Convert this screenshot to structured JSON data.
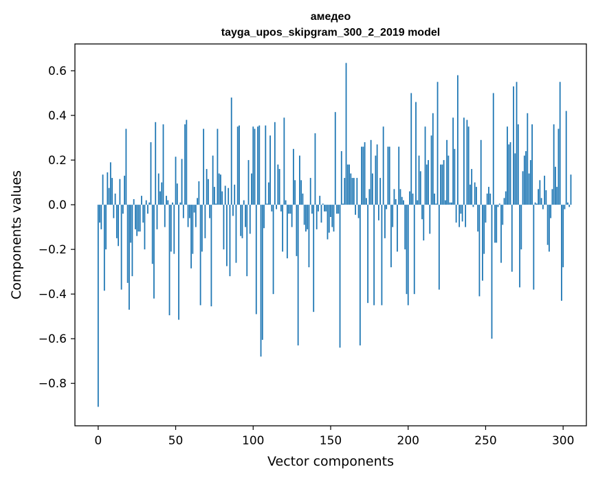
{
  "chart_data": {
    "type": "bar",
    "title": "амедео",
    "subtitle": "tayga_upos_skipgram_300_2_2019 model",
    "xlabel": "Vector components",
    "ylabel": "Components values",
    "xlim": [
      -15,
      315
    ],
    "ylim": [
      -0.99,
      0.72
    ],
    "xticks": [
      0,
      50,
      100,
      150,
      200,
      250,
      300
    ],
    "yticks": [
      -0.8,
      -0.6,
      -0.4,
      -0.2,
      0.0,
      0.2,
      0.4,
      0.6
    ],
    "ytick_labels": [
      "−0.8",
      "−0.6",
      "−0.4",
      "−0.2",
      "0.0",
      "0.2",
      "0.4",
      "0.6"
    ],
    "xtick_labels": [
      "0",
      "50",
      "100",
      "150",
      "200",
      "250",
      "300"
    ],
    "bar_color": "#1f77b4",
    "values": [
      -0.905,
      -0.08,
      -0.11,
      0.135,
      -0.385,
      -0.2,
      0.145,
      0.075,
      0.19,
      0.12,
      -0.06,
      0.05,
      -0.15,
      -0.185,
      0.115,
      -0.38,
      -0.04,
      0.13,
      0.34,
      -0.35,
      -0.47,
      -0.17,
      -0.32,
      0.025,
      -0.11,
      -0.14,
      -0.12,
      -0.12,
      0.04,
      -0.08,
      -0.2,
      0.02,
      -0.04,
      0.01,
      0.28,
      -0.265,
      -0.42,
      0.37,
      -0.11,
      0.14,
      0.06,
      0.1,
      0.36,
      -0.1,
      0.04,
      0.02,
      -0.495,
      -0.21,
      0.01,
      -0.22,
      0.215,
      0.095,
      -0.515,
      0.01,
      0.205,
      -0.06,
      0.36,
      0.38,
      -0.1,
      -0.06,
      -0.285,
      -0.22,
      -0.035,
      -0.1,
      0.03,
      0.105,
      -0.45,
      -0.21,
      0.34,
      -0.15,
      0.16,
      0.115,
      -0.06,
      -0.455,
      0.22,
      0.08,
      0.005,
      0.34,
      0.14,
      0.135,
      0.06,
      -0.2,
      0.085,
      -0.275,
      0.075,
      -0.32,
      0.48,
      -0.05,
      0.09,
      -0.26,
      0.35,
      0.355,
      -0.14,
      -0.15,
      0.02,
      -0.1,
      -0.32,
      0.2,
      -0.13,
      0.14,
      0.35,
      0.34,
      -0.49,
      0.35,
      0.355,
      -0.68,
      -0.605,
      -0.105,
      0.355,
      0.005,
      0.1,
      0.31,
      -0.03,
      -0.4,
      0.37,
      -0.02,
      0.18,
      0.16,
      -0.03,
      -0.21,
      0.39,
      0.02,
      -0.24,
      -0.04,
      -0.04,
      -0.1,
      0.25,
      0.11,
      -0.23,
      -0.63,
      0.22,
      0.11,
      0.05,
      -0.09,
      -0.12,
      -0.11,
      -0.28,
      0.12,
      -0.04,
      -0.48,
      0.32,
      -0.11,
      -0.03,
      0.04,
      -0.08,
      0.005,
      -0.03,
      -0.03,
      -0.155,
      -0.125,
      -0.055,
      -0.1,
      -0.12,
      0.415,
      -0.04,
      -0.04,
      -0.64,
      0.24,
      0.005,
      0.12,
      0.635,
      0.18,
      0.18,
      0.14,
      0.12,
      0.12,
      -0.045,
      0.12,
      -0.06,
      -0.63,
      0.26,
      0.26,
      0.28,
      0.03,
      -0.44,
      0.07,
      0.29,
      0.14,
      -0.45,
      0.22,
      0.27,
      -0.07,
      0.12,
      -0.45,
      0.35,
      -0.15,
      -0.02,
      0.26,
      0.26,
      -0.28,
      -0.1,
      0.07,
      0.025,
      -0.21,
      0.26,
      0.07,
      0.035,
      0.02,
      -0.2,
      -0.4,
      -0.45,
      0.06,
      0.5,
      0.05,
      -0.4,
      0.46,
      0.02,
      0.22,
      0.15,
      -0.065,
      -0.16,
      0.35,
      0.18,
      0.2,
      -0.13,
      0.31,
      0.41,
      0.05,
      0.005,
      0.55,
      -0.38,
      0.18,
      0.18,
      0.2,
      0.02,
      0.29,
      0.22,
      0.01,
      0.01,
      0.39,
      0.25,
      -0.08,
      0.58,
      -0.1,
      -0.04,
      -0.075,
      0.39,
      -0.1,
      0.38,
      0.35,
      0.09,
      0.16,
      -0.01,
      0.1,
      0.08,
      -0.12,
      -0.41,
      0.29,
      -0.34,
      -0.22,
      -0.08,
      0.05,
      0.08,
      0.05,
      -0.6,
      0.5,
      -0.17,
      -0.17,
      -0.01,
      0.005,
      -0.26,
      -0.09,
      0.03,
      0.06,
      0.35,
      0.27,
      0.28,
      -0.3,
      0.53,
      0.23,
      0.55,
      0.36,
      -0.37,
      -0.2,
      0.15,
      0.22,
      0.24,
      0.41,
      0.14,
      0.2,
      0.36,
      -0.38,
      0.01,
      0.005,
      0.07,
      0.11,
      0.03,
      -0.02,
      0.13,
      0.065,
      -0.18,
      -0.21,
      -0.06,
      0.07,
      0.36,
      0.17,
      0.08,
      0.34,
      0.55,
      -0.43,
      -0.28,
      -0.02,
      0.42,
      0.01,
      -0.01,
      0.135
    ]
  }
}
